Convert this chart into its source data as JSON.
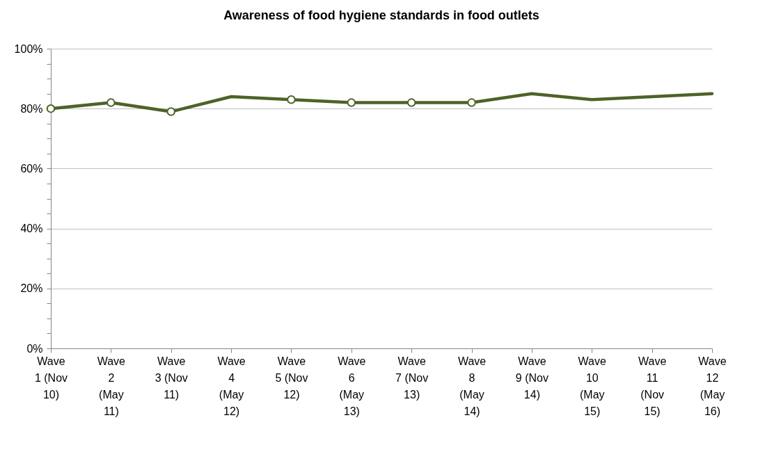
{
  "chart_data": {
    "type": "line",
    "title": "Awareness of food hygiene standards in food outlets",
    "categories": [
      "Wave 1 (Nov 10)",
      "Wave 2 (May 11)",
      "Wave 3 (Nov 11)",
      "Wave 4 (May 12)",
      "Wave 5 (Nov 12)",
      "Wave 6 (May 13)",
      "Wave 7 (Nov 13)",
      "Wave 8 (May 14)",
      "Wave 9 (Nov 14)",
      "Wave 10 (May 15)",
      "Wave 11 (Nov 15)",
      "Wave 12 (May 16)"
    ],
    "series": [
      {
        "type": "line",
        "color": "#4f6228",
        "marker": "none",
        "values": [
          80,
          82,
          79,
          84,
          83,
          82,
          82,
          82,
          85,
          83,
          84,
          85
        ]
      },
      {
        "type": "scatter",
        "color": "#4f6228",
        "marker": "circle",
        "values": [
          80,
          82,
          79,
          null,
          83,
          82,
          82,
          82,
          null,
          null,
          null,
          null
        ]
      }
    ],
    "ylim": [
      0,
      100
    ],
    "yticks": [
      {
        "value": 0,
        "label": "0%"
      },
      {
        "value": 5,
        "label": null
      },
      {
        "value": 10,
        "label": null
      },
      {
        "value": 15,
        "label": null
      },
      {
        "value": 20,
        "label": "20%"
      },
      {
        "value": 25,
        "label": null
      },
      {
        "value": 30,
        "label": null
      },
      {
        "value": 35,
        "label": null
      },
      {
        "value": 40,
        "label": "40%"
      },
      {
        "value": 45,
        "label": null
      },
      {
        "value": 50,
        "label": null
      },
      {
        "value": 55,
        "label": null
      },
      {
        "value": 60,
        "label": "60%"
      },
      {
        "value": 65,
        "label": null
      },
      {
        "value": 70,
        "label": null
      },
      {
        "value": 75,
        "label": null
      },
      {
        "value": 80,
        "label": "80%"
      },
      {
        "value": 85,
        "label": null
      },
      {
        "value": 90,
        "label": null
      },
      {
        "value": 95,
        "label": null
      },
      {
        "value": 100,
        "label": "100%"
      }
    ],
    "grid": "y"
  }
}
